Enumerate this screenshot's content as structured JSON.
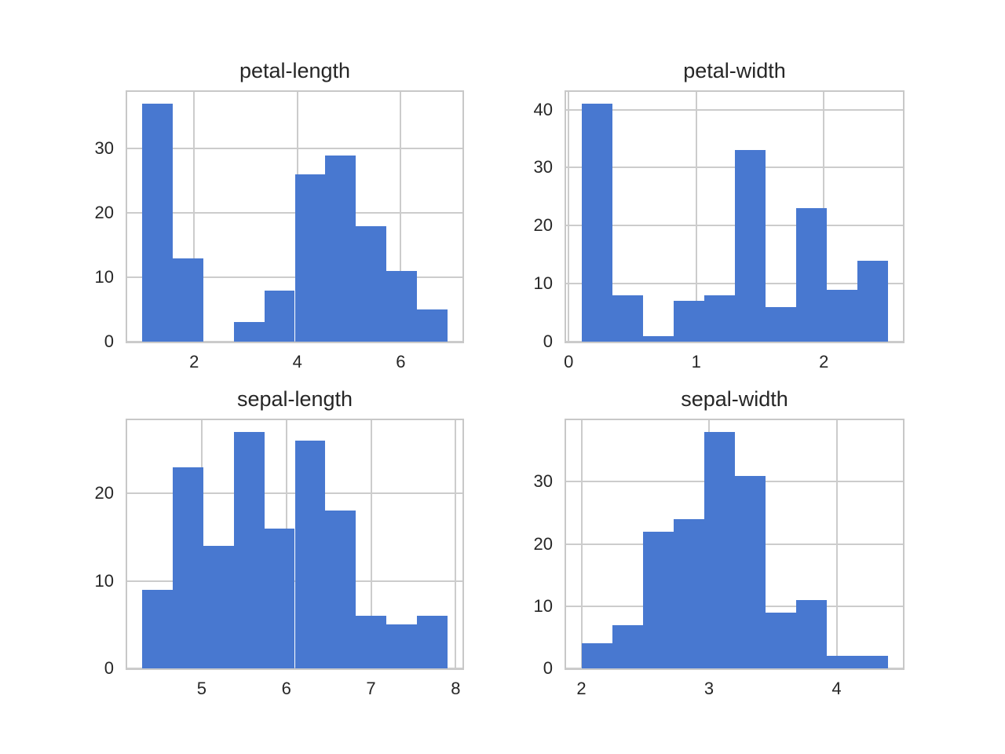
{
  "figure": {
    "background": "#ffffff",
    "bar_color": "#4878d0",
    "grid_color": "#cccccc",
    "spine_color": "#c8c8c8",
    "text_color": "#262626"
  },
  "chart_data": [
    {
      "type": "bar",
      "title": "petal-length",
      "bin_edges": [
        1.0,
        1.59,
        2.18,
        2.77,
        3.36,
        3.95,
        4.54,
        5.13,
        5.72,
        6.31,
        6.9
      ],
      "counts": [
        37,
        13,
        0,
        3,
        8,
        26,
        29,
        18,
        11,
        5
      ],
      "xticks": [
        2,
        4,
        6
      ],
      "yticks": [
        0,
        10,
        20,
        30
      ],
      "xlim": [
        0.705,
        7.195
      ],
      "ylim": [
        0,
        38.85
      ],
      "grid": true,
      "legend": null
    },
    {
      "type": "bar",
      "title": "petal-width",
      "bin_edges": [
        0.1,
        0.34,
        0.58,
        0.82,
        1.06,
        1.3,
        1.54,
        1.78,
        2.02,
        2.26,
        2.5
      ],
      "counts": [
        41,
        8,
        1,
        7,
        8,
        33,
        6,
        23,
        9,
        14
      ],
      "xticks": [
        0,
        1,
        2
      ],
      "yticks": [
        0,
        10,
        20,
        30,
        40
      ],
      "xlim": [
        -0.02,
        2.62
      ],
      "ylim": [
        0,
        43.05
      ],
      "grid": true,
      "legend": null
    },
    {
      "type": "bar",
      "title": "sepal-length",
      "bin_edges": [
        4.3,
        4.66,
        5.02,
        5.38,
        5.74,
        6.1,
        6.46,
        6.82,
        7.18,
        7.54,
        7.9
      ],
      "counts": [
        9,
        23,
        14,
        27,
        16,
        26,
        18,
        6,
        5,
        6
      ],
      "xticks": [
        5,
        6,
        7,
        8
      ],
      "yticks": [
        0,
        10,
        20
      ],
      "xlim": [
        4.12,
        8.08
      ],
      "ylim": [
        0,
        28.35
      ],
      "grid": true,
      "legend": null
    },
    {
      "type": "bar",
      "title": "sepal-width",
      "bin_edges": [
        2.0,
        2.24,
        2.48,
        2.72,
        2.96,
        3.2,
        3.44,
        3.68,
        3.92,
        4.16,
        4.4
      ],
      "counts": [
        4,
        7,
        22,
        24,
        38,
        31,
        9,
        11,
        2,
        2
      ],
      "xticks": [
        2,
        3,
        4
      ],
      "yticks": [
        0,
        10,
        20,
        30
      ],
      "xlim": [
        1.88,
        4.52
      ],
      "ylim": [
        0,
        39.9
      ],
      "grid": true,
      "legend": null
    }
  ]
}
